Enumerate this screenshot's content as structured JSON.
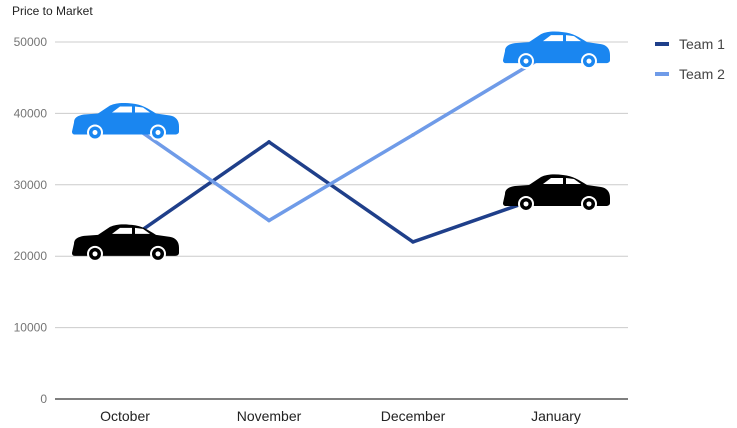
{
  "chart_data": {
    "type": "line",
    "title": "",
    "ylabel": "Price to Market",
    "xlabel": "",
    "categories": [
      "October",
      "November",
      "December",
      "January"
    ],
    "ylim": [
      0,
      50000
    ],
    "yticks": [
      "0",
      "10000",
      "20000",
      "30000",
      "40000",
      "50000"
    ],
    "grid": true,
    "legend": "right",
    "series": [
      {
        "name": "Team 1",
        "values": [
          22000,
          36000,
          22000,
          29000
        ],
        "color": "#1f3f8a"
      },
      {
        "name": "Team 2",
        "values": [
          39000,
          25000,
          37000,
          49000
        ],
        "color": "#6f9be8"
      }
    ],
    "markers": [
      {
        "series": 0,
        "category": 0,
        "icon": "car-icon",
        "color": "#000000"
      },
      {
        "series": 0,
        "category": 3,
        "icon": "car-icon",
        "color": "#000000"
      },
      {
        "series": 1,
        "category": 0,
        "icon": "car-icon",
        "color": "#1a86f0"
      },
      {
        "series": 1,
        "category": 3,
        "icon": "car-icon",
        "color": "#1a86f0"
      }
    ]
  }
}
